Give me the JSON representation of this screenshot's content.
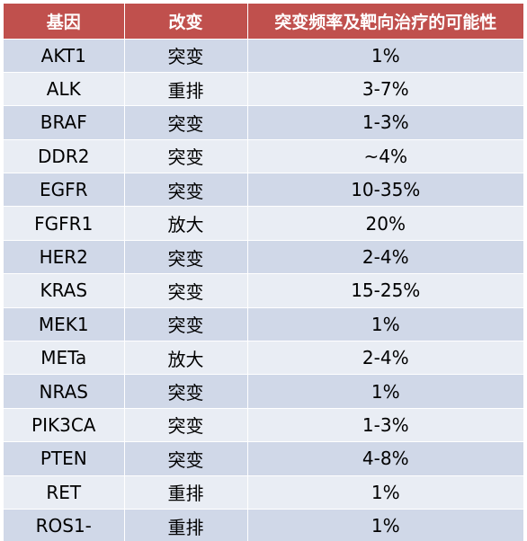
{
  "table": {
    "headers": [
      "基因",
      "改变",
      "突变频率及靶向治疗的可能性"
    ],
    "rows": [
      [
        "AKT1",
        "突变",
        "1%"
      ],
      [
        "ALK",
        "重排",
        "3-7%"
      ],
      [
        "BRAF",
        "突变",
        "1-3%"
      ],
      [
        "DDR2",
        "突变",
        "~4%"
      ],
      [
        "EGFR",
        "突变",
        "10-35%"
      ],
      [
        "FGFR1",
        "放大",
        "20%"
      ],
      [
        "HER2",
        "突变",
        "2-4%"
      ],
      [
        "KRAS",
        "突变",
        "15-25%"
      ],
      [
        "MEK1",
        "突变",
        "1%"
      ],
      [
        "METa",
        "放大",
        "2-4%"
      ],
      [
        "NRAS",
        "突变",
        "1%"
      ],
      [
        "PIK3CA",
        "突变",
        "1-3%"
      ],
      [
        "PTEN",
        "突变",
        "4-8%"
      ],
      [
        "RET",
        "重排",
        "1%"
      ],
      [
        "ROS1-",
        "重排",
        "1%"
      ]
    ]
  },
  "colors": {
    "header_bg": "#c0504d",
    "row_odd_bg": "#d0d8e8",
    "row_even_bg": "#e9edf4",
    "header_text": "#ffffff"
  }
}
